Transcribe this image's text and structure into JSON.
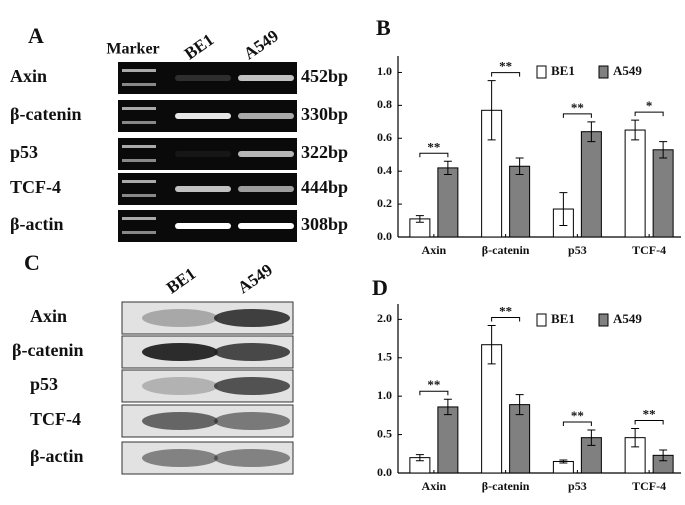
{
  "panel_labels": [
    "A",
    "B",
    "C",
    "D"
  ],
  "gel": {
    "header": [
      "Marker",
      "BE1",
      "A549"
    ],
    "rows": [
      {
        "label": "Axin",
        "size": "452bp"
      },
      {
        "label": "β-catenin",
        "size": "330bp"
      },
      {
        "label": "p53",
        "size": "322bp"
      },
      {
        "label": "TCF-4",
        "size": "444bp"
      },
      {
        "label": "β-actin",
        "size": "308bp"
      }
    ]
  },
  "blot": {
    "header": [
      "BE1",
      "A549"
    ],
    "rows": [
      "Axin",
      "β-catenin",
      "p53",
      "TCF-4",
      "β-actin"
    ]
  },
  "chart_data": [
    {
      "type": "bar",
      "categories": [
        "Axin",
        "β-catenin",
        "p53",
        "TCF-4"
      ],
      "series": [
        {
          "name": "BE1",
          "color": "#ffffff",
          "values": [
            0.11,
            0.77,
            0.17,
            0.65
          ],
          "errors": [
            0.02,
            0.18,
            0.1,
            0.06
          ]
        },
        {
          "name": "A549",
          "color": "#808080",
          "values": [
            0.42,
            0.43,
            0.64,
            0.53
          ],
          "errors": [
            0.04,
            0.05,
            0.06,
            0.05
          ]
        }
      ],
      "significance": [
        "**",
        "**",
        "**",
        "*"
      ],
      "ylim": [
        0,
        1.1
      ],
      "yticks": [
        {
          "value": 0,
          "label": "0.0"
        },
        {
          "value": 0.2,
          "label": "0.2"
        },
        {
          "value": 0.4,
          "label": "0.4"
        },
        {
          "value": 0.6,
          "label": "0.6"
        },
        {
          "value": 0.8,
          "label": "0.8"
        },
        {
          "value": 1,
          "label": "1.0"
        }
      ],
      "legend": "top-right"
    },
    {
      "type": "bar",
      "categories": [
        "Axin",
        "β-catenin",
        "p53",
        "TCF-4"
      ],
      "series": [
        {
          "name": "BE1",
          "color": "#ffffff",
          "values": [
            0.2,
            1.67,
            0.15,
            0.46
          ],
          "errors": [
            0.04,
            0.25,
            0.02,
            0.12
          ]
        },
        {
          "name": "A549",
          "color": "#808080",
          "values": [
            0.86,
            0.89,
            0.46,
            0.23
          ],
          "errors": [
            0.1,
            0.13,
            0.1,
            0.07
          ]
        }
      ],
      "significance": [
        "**",
        "**",
        "**",
        "**"
      ],
      "ylim": [
        0,
        2.2
      ],
      "yticks": [
        {
          "value": 0,
          "label": "0.0"
        },
        {
          "value": 0.5,
          "label": "0.5"
        },
        {
          "value": 1,
          "label": "1.0"
        },
        {
          "value": 1.5,
          "label": "1.5"
        },
        {
          "value": 2,
          "label": "2.0"
        }
      ],
      "legend": "top-right"
    }
  ]
}
